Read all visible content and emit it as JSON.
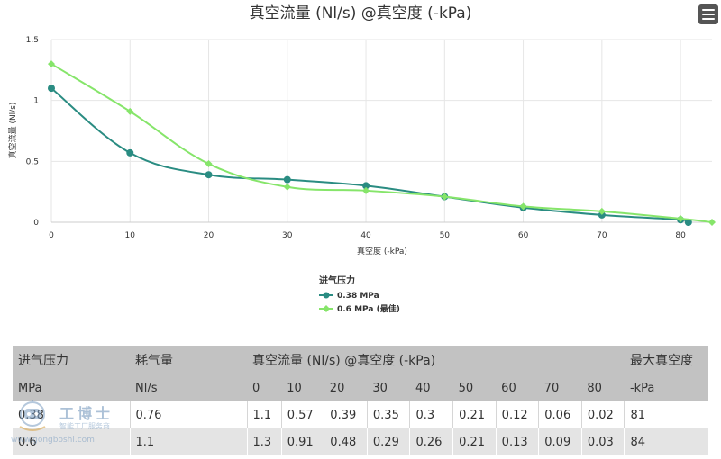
{
  "chart_data": {
    "type": "line",
    "title": "真空流量 (Nl/s) @真空度 (-kPa)",
    "xlabel": "真空度 (-kPa)",
    "ylabel": "真空流量 (Nl/s)",
    "xlim": [
      0,
      84
    ],
    "ylim": [
      0,
      1.5
    ],
    "x_ticks": [
      "0",
      "10",
      "20",
      "30",
      "40",
      "50",
      "60",
      "70",
      "80"
    ],
    "y_ticks": [
      "0",
      "0.5",
      "1",
      "1.5"
    ],
    "grid": true,
    "legend_title": "进气压力",
    "legend_position": "bottom-center",
    "series": [
      {
        "name": "0.38 MPa",
        "color": "#2a8c82",
        "marker": "circle",
        "x": [
          0,
          10,
          20,
          30,
          40,
          50,
          60,
          70,
          80,
          81
        ],
        "y": [
          1.1,
          0.57,
          0.39,
          0.35,
          0.3,
          0.21,
          0.12,
          0.06,
          0.02,
          0.0
        ]
      },
      {
        "name": "0.6 MPa (最佳)",
        "color": "#86e56a",
        "marker": "diamond",
        "x": [
          0,
          10,
          20,
          30,
          40,
          50,
          60,
          70,
          80,
          84
        ],
        "y": [
          1.3,
          0.91,
          0.48,
          0.29,
          0.26,
          0.21,
          0.13,
          0.09,
          0.03,
          0.0
        ]
      }
    ]
  },
  "table": {
    "header1": {
      "col1": "进气压力",
      "col2": "耗气量",
      "col3": "真空流量 (Nl/s) @真空度 (-kPa)",
      "col4": "最大真空度"
    },
    "header2": [
      "MPa",
      "Nl/s",
      "0",
      "10",
      "20",
      "30",
      "40",
      "50",
      "60",
      "70",
      "80",
      "-kPa"
    ],
    "rows": [
      [
        "0.38",
        "0.76",
        "1.1",
        "0.57",
        "0.39",
        "0.35",
        "0.3",
        "0.21",
        "0.12",
        "0.06",
        "0.02",
        "81"
      ],
      [
        "0.6",
        "1.1",
        "1.3",
        "0.91",
        "0.48",
        "0.29",
        "0.26",
        "0.21",
        "0.13",
        "0.09",
        "0.03",
        "84"
      ]
    ]
  },
  "watermark": {
    "title": "工博士",
    "subtitle": "智能工厂服务商",
    "url": "www.gongboshi.com"
  },
  "colors": {
    "header_bg": "#c2c2c2",
    "row_alt_bg": "#e4e4e4",
    "grid": "#e6e6e6"
  },
  "icons": {
    "menu": "hamburger-menu-icon"
  }
}
